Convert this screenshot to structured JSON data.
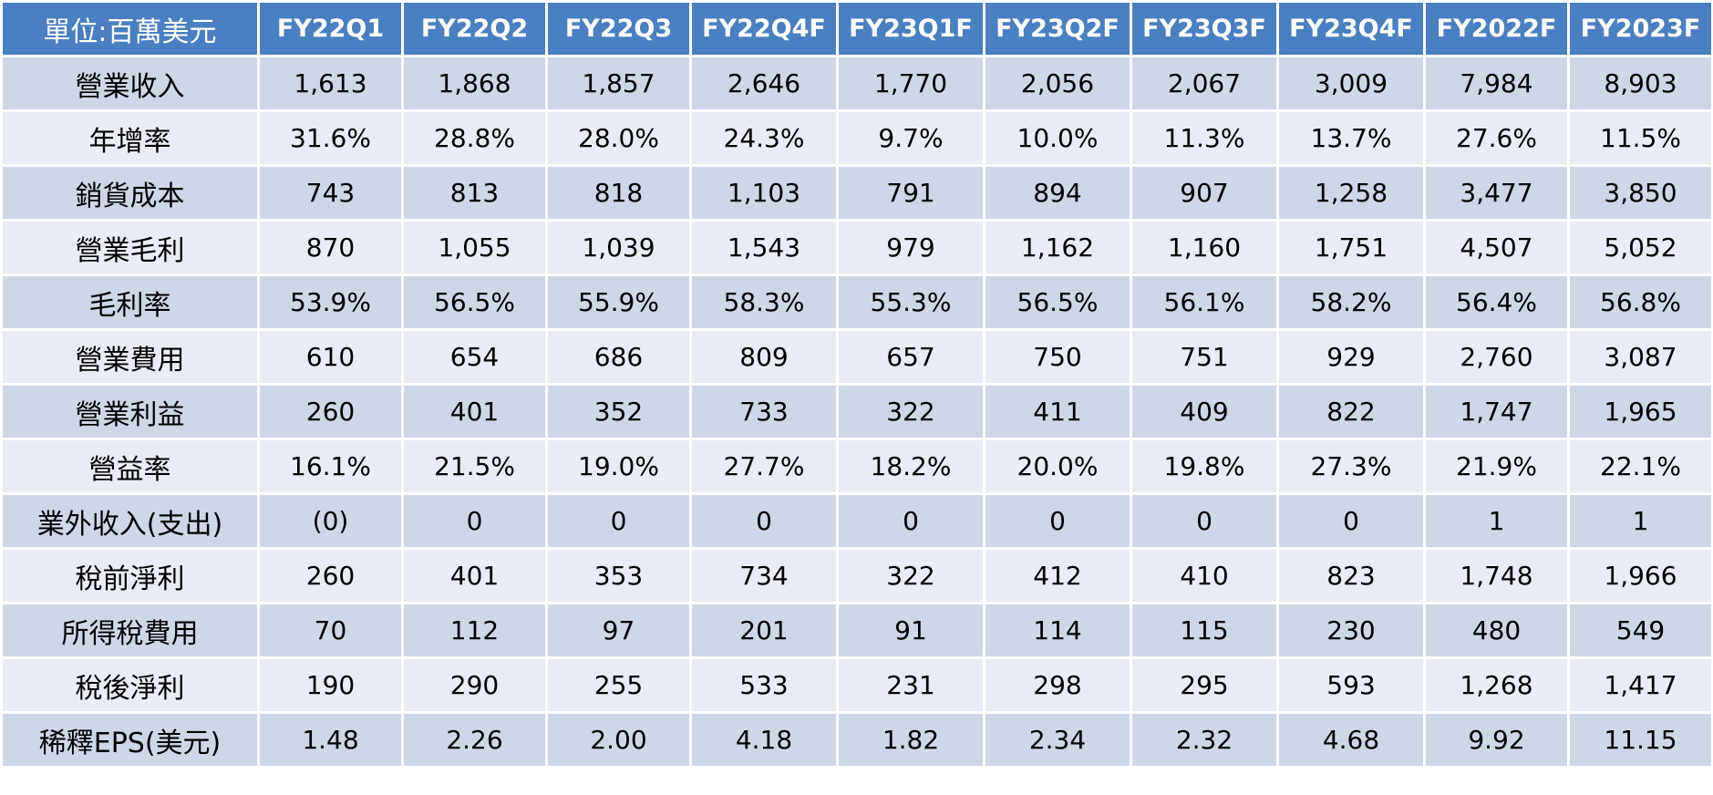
{
  "table": {
    "corner_label": "單位:百萬美元",
    "columns": [
      "FY22Q1",
      "FY22Q2",
      "FY22Q3",
      "FY22Q4F",
      "FY23Q1F",
      "FY23Q2F",
      "FY23Q3F",
      "FY23Q4F",
      "FY2022F",
      "FY2023F"
    ],
    "rows": [
      {
        "label": "營業收入",
        "values": [
          "1,613",
          "1,868",
          "1,857",
          "2,646",
          "1,770",
          "2,056",
          "2,067",
          "3,009",
          "7,984",
          "8,903"
        ]
      },
      {
        "label": "年增率",
        "values": [
          "31.6%",
          "28.8%",
          "28.0%",
          "24.3%",
          "9.7%",
          "10.0%",
          "11.3%",
          "13.7%",
          "27.6%",
          "11.5%"
        ]
      },
      {
        "label": "銷貨成本",
        "values": [
          "743",
          "813",
          "818",
          "1,103",
          "791",
          "894",
          "907",
          "1,258",
          "3,477",
          "3,850"
        ]
      },
      {
        "label": "營業毛利",
        "values": [
          "870",
          "1,055",
          "1,039",
          "1,543",
          "979",
          "1,162",
          "1,160",
          "1,751",
          "4,507",
          "5,052"
        ]
      },
      {
        "label": "毛利率",
        "values": [
          "53.9%",
          "56.5%",
          "55.9%",
          "58.3%",
          "55.3%",
          "56.5%",
          "56.1%",
          "58.2%",
          "56.4%",
          "56.8%"
        ]
      },
      {
        "label": "營業費用",
        "values": [
          "610",
          "654",
          "686",
          "809",
          "657",
          "750",
          "751",
          "929",
          "2,760",
          "3,087"
        ]
      },
      {
        "label": "營業利益",
        "values": [
          "260",
          "401",
          "352",
          "733",
          "322",
          "411",
          "409",
          "822",
          "1,747",
          "1,965"
        ]
      },
      {
        "label": "營益率",
        "values": [
          "16.1%",
          "21.5%",
          "19.0%",
          "27.7%",
          "18.2%",
          "20.0%",
          "19.8%",
          "27.3%",
          "21.9%",
          "22.1%"
        ]
      },
      {
        "label": "業外收入(支出)",
        "values": [
          "(0)",
          "0",
          "0",
          "0",
          "0",
          "0",
          "0",
          "0",
          "1",
          "1"
        ]
      },
      {
        "label": "稅前淨利",
        "values": [
          "260",
          "401",
          "353",
          "734",
          "322",
          "412",
          "410",
          "823",
          "1,748",
          "1,966"
        ]
      },
      {
        "label": "所得稅費用",
        "values": [
          "70",
          "112",
          "97",
          "201",
          "91",
          "114",
          "115",
          "230",
          "480",
          "549"
        ]
      },
      {
        "label": "稅後淨利",
        "values": [
          "190",
          "290",
          "255",
          "533",
          "231",
          "298",
          "295",
          "593",
          "1,268",
          "1,417"
        ]
      },
      {
        "label": "稀釋EPS(美元)",
        "values": [
          "1.48",
          "2.26",
          "2.00",
          "4.18",
          "1.82",
          "2.34",
          "2.32",
          "4.68",
          "9.92",
          "11.15"
        ]
      }
    ]
  },
  "colors": {
    "header_bg": "#4a7fc1",
    "header_text": "#ffffff",
    "row_dark": "#cfd6e6",
    "row_light": "#e9ecf4"
  }
}
